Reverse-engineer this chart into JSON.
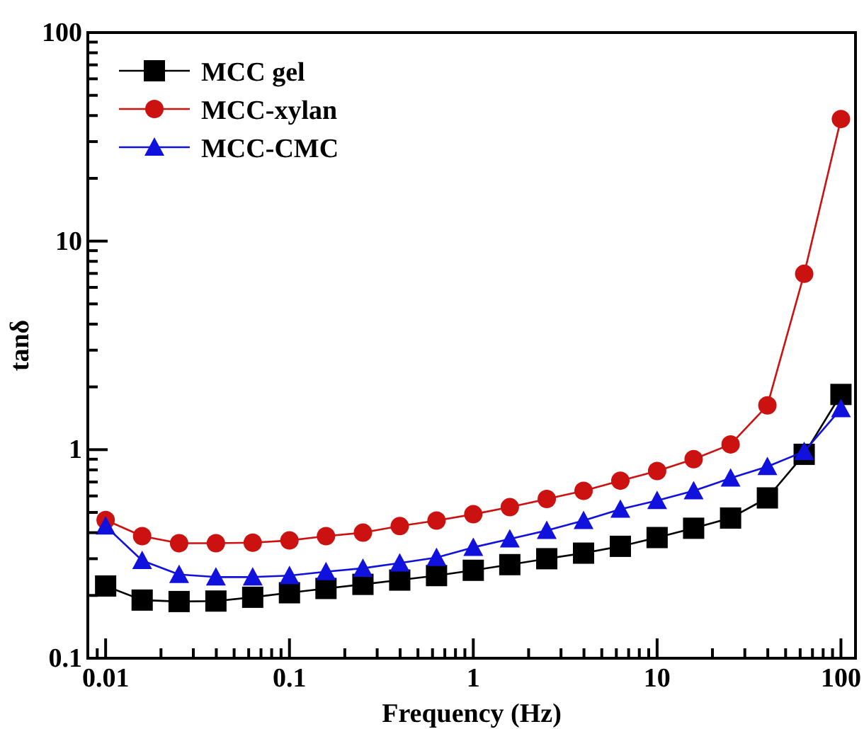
{
  "chart_data": {
    "type": "line",
    "xlabel": "Frequency (Hz)",
    "ylabel": "tanδ",
    "log": "xy",
    "legend": "top left",
    "grid": false,
    "x": [
      0.01,
      0.0158,
      0.0251,
      0.0398,
      0.0631,
      0.1,
      0.158,
      0.251,
      0.398,
      0.631,
      1,
      1.58,
      2.51,
      3.98,
      6.31,
      10,
      15.8,
      25.1,
      39.8,
      63.1,
      100
    ],
    "xlim": [
      0.008,
      120
    ],
    "ylim": [
      0.1,
      100
    ],
    "xticks": [
      {
        "value": 0.009,
        "label": null
      },
      0.01,
      {
        "value": 0.02,
        "label": null
      },
      {
        "value": 0.03,
        "label": null
      },
      {
        "value": 0.04,
        "label": null
      },
      {
        "value": 0.05,
        "label": null
      },
      {
        "value": 0.06,
        "label": null
      },
      {
        "value": 0.07,
        "label": null
      },
      {
        "value": 0.08,
        "label": null
      },
      {
        "value": 0.09,
        "label": null
      },
      0.1,
      {
        "value": 0.2,
        "label": null
      },
      {
        "value": 0.3,
        "label": null
      },
      {
        "value": 0.4,
        "label": null
      },
      {
        "value": 0.5,
        "label": null
      },
      {
        "value": 0.6,
        "label": null
      },
      {
        "value": 0.7,
        "label": null
      },
      {
        "value": 0.8,
        "label": null
      },
      {
        "value": 0.9,
        "label": null
      },
      1,
      {
        "value": 2,
        "label": null
      },
      {
        "value": 3,
        "label": null
      },
      {
        "value": 4,
        "label": null
      },
      {
        "value": 5,
        "label": null
      },
      {
        "value": 6,
        "label": null
      },
      {
        "value": 7,
        "label": null
      },
      {
        "value": 8,
        "label": null
      },
      {
        "value": 9,
        "label": null
      },
      10,
      {
        "value": 20,
        "label": null
      },
      {
        "value": 30,
        "label": null
      },
      {
        "value": 40,
        "label": null
      },
      {
        "value": 50,
        "label": null
      },
      {
        "value": 60,
        "label": null
      },
      {
        "value": 70,
        "label": null
      },
      {
        "value": 80,
        "label": null
      },
      {
        "value": 90,
        "label": null
      },
      100
    ],
    "yticks": [
      0.1,
      {
        "value": 0.2,
        "label": null
      },
      {
        "value": 0.3,
        "label": null
      },
      {
        "value": 0.4,
        "label": null
      },
      {
        "value": 0.5,
        "label": null
      },
      {
        "value": 0.6,
        "label": null
      },
      {
        "value": 0.7,
        "label": null
      },
      {
        "value": 0.8,
        "label": null
      },
      {
        "value": 0.9,
        "label": null
      },
      1,
      {
        "value": 2,
        "label": null
      },
      {
        "value": 3,
        "label": null
      },
      {
        "value": 4,
        "label": null
      },
      {
        "value": 5,
        "label": null
      },
      {
        "value": 6,
        "label": null
      },
      {
        "value": 7,
        "label": null
      },
      {
        "value": 8,
        "label": null
      },
      {
        "value": 9,
        "label": null
      },
      10,
      {
        "value": 20,
        "label": null
      },
      {
        "value": 30,
        "label": null
      },
      {
        "value": 40,
        "label": null
      },
      {
        "value": 50,
        "label": null
      },
      {
        "value": 60,
        "label": null
      },
      {
        "value": 70,
        "label": null
      },
      {
        "value": 80,
        "label": null
      },
      {
        "value": 90,
        "label": null
      },
      100
    ],
    "series": [
      {
        "name": "MCC gel",
        "color": "#000000",
        "marker": "square",
        "values": [
          0.222,
          0.19,
          0.187,
          0.188,
          0.196,
          0.206,
          0.216,
          0.226,
          0.237,
          0.249,
          0.264,
          0.281,
          0.3,
          0.319,
          0.344,
          0.379,
          0.42,
          0.47,
          0.587,
          0.95,
          1.84
        ]
      },
      {
        "name": "MCC-xylan",
        "color": "#cc1111",
        "marker": "circle",
        "values": [
          0.46,
          0.385,
          0.356,
          0.356,
          0.358,
          0.367,
          0.385,
          0.4,
          0.43,
          0.457,
          0.49,
          0.53,
          0.58,
          0.635,
          0.71,
          0.79,
          0.9,
          1.06,
          1.63,
          6.97,
          38.5
        ]
      },
      {
        "name": "MCC-CMC",
        "color": "#1111dd",
        "marker": "triangle",
        "values": [
          0.43,
          0.294,
          0.252,
          0.245,
          0.245,
          0.249,
          0.26,
          0.27,
          0.286,
          0.304,
          0.34,
          0.373,
          0.41,
          0.457,
          0.518,
          0.57,
          0.635,
          0.73,
          0.83,
          0.98,
          1.57
        ]
      }
    ]
  }
}
